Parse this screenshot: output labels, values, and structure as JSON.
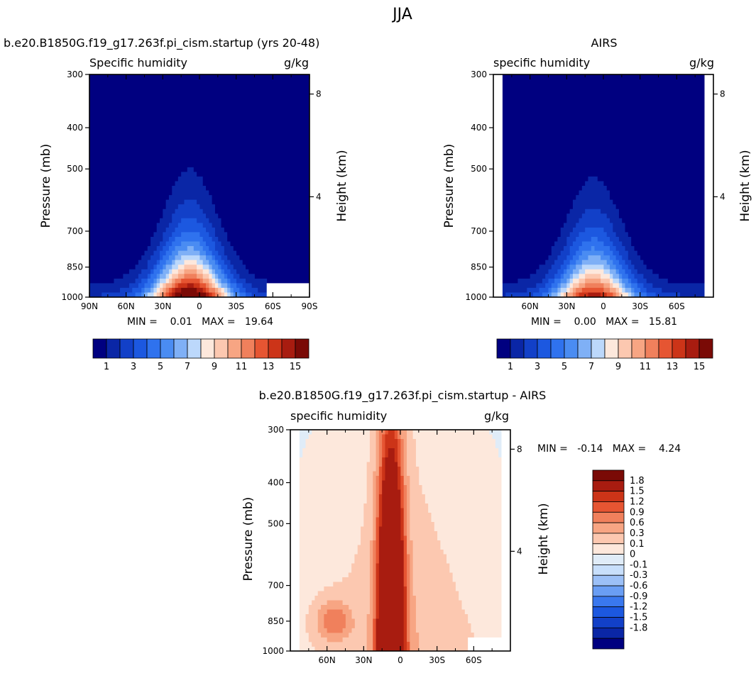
{
  "figure": {
    "title": "JJA"
  },
  "colors": {
    "abs_levels": [
      "#000080",
      "#0a26a6",
      "#1240c8",
      "#1c58e0",
      "#2f72ee",
      "#4a8cf2",
      "#7fb0f6",
      "#bcd8fb",
      "#fde8dc",
      "#fcc8b0",
      "#f7a583",
      "#f0805c",
      "#e65532",
      "#cc3418",
      "#a81c10",
      "#7a0a06"
    ],
    "diff_levels": [
      "#000080",
      "#0a26a6",
      "#1240c8",
      "#1c58e0",
      "#3a78ee",
      "#6a9ef4",
      "#9cc0f7",
      "#c8dffb",
      "#e0ecf8",
      "#fde8dc",
      "#fcc8b0",
      "#f7a583",
      "#f0805c",
      "#e65532",
      "#cc3418",
      "#a81c10",
      "#7a0a06"
    ],
    "missing": "#ffffff"
  },
  "panels": {
    "model": {
      "title": "b.e20.B1850G.f19_g17.263f.pi_cism.startup (yrs 20-48)",
      "left_label": "Specific humidity",
      "units": "g/kg",
      "ylabel": "Pressure (mb)",
      "right_label": "Height (km)",
      "stats": "MIN =    0.01   MAX =   19.64"
    },
    "obs": {
      "title": "AIRS",
      "left_label": "specific humidity",
      "units": "g/kg",
      "ylabel": "Pressure (mb)",
      "right_label": "Height (km)",
      "stats": "MIN =    0.00   MAX =   15.81"
    },
    "diff": {
      "title": "b.e20.B1850G.f19_g17.263f.pi_cism.startup - AIRS",
      "left_label": "specific humidity",
      "units": "g/kg",
      "ylabel": "Pressure (mb)",
      "right_label": "Height (km)",
      "stats": "MIN =   -0.14   MAX =    4.24"
    }
  },
  "chart_data": [
    {
      "type": "heatmap",
      "panel": "model",
      "title": "b.e20.B1850G.f19_g17.263f.pi_cism.startup (yrs 20-48)",
      "variable": "Specific humidity",
      "units": "g/kg",
      "ylabel": "Pressure (mb)",
      "y2label": "Height (km)",
      "x_ticks": [
        "90N",
        "60N",
        "30N",
        "0",
        "30S",
        "60S",
        "90S"
      ],
      "x_tick_lats": [
        90,
        60,
        30,
        0,
        -30,
        -60,
        -90
      ],
      "xlim": [
        90,
        -90
      ],
      "y_ticks": [
        300,
        400,
        500,
        700,
        850,
        1000
      ],
      "ylim": [
        1000,
        300
      ],
      "y_scale": "log",
      "y2_ticks": [
        8,
        4
      ],
      "levels": [
        1,
        2,
        3,
        4,
        5,
        6,
        7,
        8,
        9,
        10,
        11,
        12,
        13,
        14,
        15
      ],
      "colorbar_labels": [
        "1",
        "3",
        "5",
        "7",
        "9",
        "11",
        "13",
        "15"
      ],
      "min": 0.01,
      "max": 19.64,
      "peak_lat": 8,
      "missing_region": {
        "lat_from": -55,
        "pres_above": 925
      }
    },
    {
      "type": "heatmap",
      "panel": "obs",
      "title": "AIRS",
      "variable": "specific humidity",
      "units": "g/kg",
      "ylabel": "Pressure (mb)",
      "y2label": "Height (km)",
      "x_ticks": [
        "60N",
        "30N",
        "0",
        "30S",
        "60S"
      ],
      "x_tick_lats": [
        60,
        30,
        0,
        -30,
        -60
      ],
      "xlim": [
        90,
        -90
      ],
      "y_ticks": [
        300,
        400,
        500,
        700,
        850,
        1000
      ],
      "ylim": [
        1000,
        300
      ],
      "y_scale": "log",
      "y2_ticks": [
        8,
        4
      ],
      "levels": [
        1,
        2,
        3,
        4,
        5,
        6,
        7,
        8,
        9,
        10,
        11,
        12,
        13,
        14,
        15
      ],
      "colorbar_labels": [
        "1",
        "3",
        "5",
        "7",
        "9",
        "11",
        "13",
        "15"
      ],
      "min": 0.0,
      "max": 15.81,
      "peak_lat": 8,
      "data_lat_range": [
        82,
        -82
      ]
    },
    {
      "type": "heatmap",
      "panel": "diff",
      "title": "b.e20.B1850G.f19_g17.263f.pi_cism.startup - AIRS",
      "variable": "specific humidity",
      "units": "g/kg",
      "ylabel": "Pressure (mb)",
      "y2label": "Height (km)",
      "x_ticks": [
        "60N",
        "30N",
        "0",
        "30S",
        "60S"
      ],
      "x_tick_lats": [
        60,
        30,
        0,
        -30,
        -60
      ],
      "xlim": [
        90,
        -90
      ],
      "y_ticks": [
        300,
        400,
        500,
        700,
        850,
        1000
      ],
      "ylim": [
        1000,
        300
      ],
      "y_scale": "log",
      "y2_ticks": [
        8,
        4
      ],
      "levels": [
        -1.8,
        -1.5,
        -1.2,
        -0.9,
        -0.6,
        -0.3,
        -0.1,
        0,
        0.1,
        0.3,
        0.6,
        0.9,
        1.2,
        1.5,
        1.8
      ],
      "colorbar_labels": [
        "1.8",
        "1.5",
        "1.2",
        "0.9",
        "0.6",
        "0.3",
        "0.1",
        "0",
        "-0.1",
        "-0.3",
        "-0.6",
        "-0.9",
        "-1.2",
        "-1.5",
        "-1.8"
      ],
      "min": -0.14,
      "max": 4.24,
      "data_lat_range": [
        82,
        -82
      ],
      "missing_region": {
        "lat_from": -55,
        "pres_above": 925
      }
    }
  ]
}
